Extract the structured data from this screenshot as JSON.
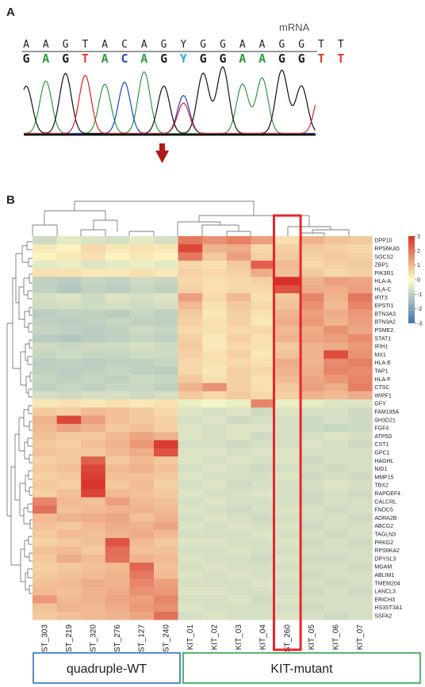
{
  "panel_a": {
    "label": "A",
    "title": "mRNA",
    "top_sequence": [
      "A",
      "A",
      "G",
      "T",
      "A",
      "C",
      "A",
      "G",
      "Y",
      "G",
      "G",
      "A",
      "A",
      "G",
      "G",
      "T",
      "T"
    ],
    "base_calls": [
      "G",
      "A",
      "G",
      "T",
      "A",
      "C",
      "A",
      "G",
      "Y",
      "G",
      "G",
      "A",
      "A",
      "G",
      "G",
      "T",
      "T"
    ],
    "base_colors": {
      "A": "#2e9a3e",
      "C": "#2450c8",
      "G": "#222222",
      "T": "#e23b2e",
      "Y": "#29a8e0"
    },
    "trace_colors": {
      "A": "#2e9a3e",
      "C": "#2040d0",
      "G": "#111111",
      "T": "#e02020"
    },
    "arrow_color": "#b01a1a"
  },
  "panel_b": {
    "label": "B",
    "highlight_color": "#e8262c",
    "groups": [
      {
        "label": "quadruple-WT",
        "color": "#2d6fb7"
      },
      {
        "label": "KIT-mutant",
        "color": "#2aa64a"
      }
    ]
  },
  "chart_data": {
    "type": "heatmap",
    "columns": [
      "GIST_303",
      "GIST_219",
      "GIST_320",
      "GIST_276",
      "GIST_127",
      "GIST_240",
      "KIT_01",
      "KIT_02",
      "KIT_03",
      "KIT_04",
      "GIST_260",
      "KIT_05",
      "KIT_06",
      "KIT_07"
    ],
    "rows": [
      "DPP10",
      "RPS6KA5",
      "SOCS2",
      "ZBP1",
      "PIK3R1",
      "HLA-A",
      "HLA-C",
      "IFIT3",
      "EPSTI1",
      "BTN3A3",
      "BTN3A2",
      "PSME2",
      "STAT1",
      "IFIH1",
      "MX1",
      "HLA-E",
      "TAP1",
      "HLA-F",
      "CTSC",
      "WIPF1",
      "GFY",
      "FAM195A",
      "SH3D21",
      "FGF4",
      "ATP5D",
      "CST1",
      "GPC1",
      "HAGHL",
      "NID1",
      "MMP15",
      "TBX2",
      "RAPGEF4",
      "CALCRL",
      "FNDC5",
      "ADRA2B",
      "ABCG2",
      "TAGLN3",
      "PRKG2",
      "RPS6KA2",
      "DPYSL3",
      "MGAM",
      "ABLIM1",
      "TMEM204",
      "LANCL3",
      "ERICH3",
      "HS3ST3A1",
      "SSFA2"
    ],
    "values": [
      [
        -0.6,
        -0.3,
        -0.4,
        -0.5,
        -0.3,
        -0.5,
        1.8,
        1.4,
        1.7,
        1.2,
        0.3,
        0.9,
        0.7,
        0.6
      ],
      [
        0.2,
        0.1,
        0.4,
        0.2,
        0.3,
        0.2,
        2.6,
        0.9,
        1.0,
        0.4,
        0.5,
        0.6,
        0.5,
        0.4
      ],
      [
        0.1,
        0.2,
        0.3,
        0.1,
        0.2,
        0.1,
        1.8,
        0.6,
        1.2,
        0.5,
        0.6,
        0.5,
        0.6,
        0.5
      ],
      [
        -0.3,
        -0.2,
        -0.4,
        -0.3,
        -0.2,
        -0.3,
        0.4,
        0.3,
        0.6,
        2.2,
        0.8,
        0.4,
        0.5,
        0.6
      ],
      [
        0.3,
        0.3,
        0.2,
        0.2,
        0.3,
        0.2,
        0.5,
        0.4,
        0.5,
        1.0,
        0.7,
        0.6,
        0.4,
        0.5
      ],
      [
        -0.8,
        -0.9,
        -0.7,
        -0.8,
        -0.6,
        -0.7,
        0.4,
        0.3,
        0.4,
        0.5,
        3.0,
        0.9,
        1.2,
        1.1
      ],
      [
        -0.8,
        -1.0,
        -0.8,
        -0.9,
        -0.7,
        -0.8,
        0.5,
        0.3,
        0.4,
        0.4,
        2.4,
        1.0,
        1.0,
        1.2
      ],
      [
        -0.5,
        -0.4,
        -0.6,
        -0.4,
        -0.5,
        -0.4,
        1.2,
        0.4,
        0.8,
        0.3,
        0.6,
        1.6,
        0.9,
        1.8
      ],
      [
        -0.6,
        -0.5,
        -0.6,
        -0.5,
        -0.6,
        -0.5,
        0.8,
        0.3,
        0.6,
        0.4,
        0.7,
        1.4,
        0.8,
        1.6
      ],
      [
        -0.9,
        -0.8,
        -0.8,
        -0.9,
        -0.7,
        -0.8,
        0.6,
        0.2,
        0.5,
        0.3,
        0.9,
        1.2,
        1.0,
        1.3
      ],
      [
        -0.8,
        -0.9,
        -0.8,
        -0.7,
        -0.8,
        -0.8,
        0.5,
        0.3,
        0.5,
        0.2,
        1.0,
        1.3,
        0.9,
        1.2
      ],
      [
        -0.7,
        -0.8,
        -0.9,
        -0.8,
        -0.6,
        -0.7,
        0.4,
        0.3,
        0.4,
        0.4,
        0.8,
        1.0,
        1.4,
        1.1
      ],
      [
        -0.9,
        -1.0,
        -0.9,
        -0.8,
        -0.7,
        -0.8,
        0.5,
        0.2,
        0.5,
        0.3,
        0.9,
        1.1,
        1.2,
        1.5
      ],
      [
        -0.6,
        -0.7,
        -0.6,
        -0.6,
        -0.5,
        -0.6,
        0.6,
        0.2,
        0.4,
        0.3,
        0.6,
        0.9,
        1.0,
        1.3
      ],
      [
        -0.7,
        -0.6,
        -0.7,
        -0.7,
        -0.6,
        -0.6,
        0.5,
        0.3,
        0.5,
        0.2,
        0.7,
        0.9,
        2.5,
        1.4
      ],
      [
        -0.9,
        -0.8,
        -0.9,
        -0.8,
        -0.8,
        -0.7,
        0.4,
        0.3,
        0.4,
        0.3,
        1.0,
        0.9,
        1.5,
        1.7
      ],
      [
        -0.8,
        -0.9,
        -0.8,
        -0.7,
        -0.8,
        -0.9,
        0.4,
        0.2,
        0.5,
        0.4,
        0.9,
        1.0,
        1.6,
        1.5
      ],
      [
        -0.7,
        -0.8,
        -0.7,
        -0.8,
        -0.6,
        -0.7,
        0.6,
        0.3,
        0.5,
        0.3,
        0.8,
        1.1,
        1.3,
        1.6
      ],
      [
        -0.8,
        -0.7,
        -0.8,
        -0.7,
        -0.7,
        -0.8,
        0.9,
        1.4,
        0.5,
        0.3,
        0.6,
        1.2,
        1.0,
        1.7
      ],
      [
        -0.5,
        -0.6,
        -0.5,
        -0.5,
        -0.6,
        -0.5,
        0.6,
        0.4,
        0.6,
        0.4,
        0.5,
        0.9,
        0.8,
        1.0
      ],
      [
        0.2,
        0.3,
        0.2,
        0.3,
        0.2,
        0.3,
        -0.2,
        -0.1,
        -0.2,
        1.6,
        -0.2,
        -0.3,
        -0.4,
        -0.4
      ],
      [
        0.6,
        0.5,
        0.8,
        0.7,
        0.6,
        0.4,
        -0.4,
        -0.5,
        -0.4,
        -0.6,
        -0.4,
        -0.5,
        -0.5,
        -0.6
      ],
      [
        0.9,
        2.6,
        1.2,
        0.7,
        0.6,
        0.5,
        -0.5,
        -0.4,
        -0.6,
        -0.5,
        -0.5,
        -0.6,
        -0.5,
        -0.6
      ],
      [
        0.8,
        1.1,
        0.9,
        0.6,
        0.7,
        0.5,
        -0.4,
        -0.5,
        -0.4,
        -0.4,
        -0.5,
        -0.6,
        -0.7,
        -0.6
      ],
      [
        0.7,
        0.6,
        0.6,
        0.8,
        1.1,
        0.9,
        -0.4,
        -0.5,
        -0.4,
        -0.6,
        -0.5,
        -0.5,
        -0.4,
        -0.5
      ],
      [
        0.6,
        0.5,
        0.7,
        0.9,
        1.3,
        2.8,
        -0.5,
        -0.5,
        -0.6,
        -0.5,
        -0.5,
        -0.4,
        -0.5,
        -0.6
      ],
      [
        0.7,
        0.6,
        0.6,
        0.8,
        1.0,
        2.4,
        -0.4,
        -0.4,
        -0.5,
        -0.4,
        -0.4,
        -0.5,
        -0.5,
        -0.5
      ],
      [
        0.5,
        0.6,
        2.2,
        0.6,
        0.8,
        0.6,
        -0.4,
        -0.5,
        -0.4,
        -0.5,
        -0.4,
        -0.6,
        -0.5,
        -0.5
      ],
      [
        0.6,
        0.7,
        2.6,
        0.8,
        0.9,
        0.7,
        -0.5,
        -0.4,
        -0.5,
        -0.6,
        -0.5,
        -0.5,
        -0.6,
        -0.5
      ],
      [
        0.5,
        0.6,
        2.8,
        0.7,
        0.7,
        0.6,
        -0.4,
        -0.5,
        -0.5,
        -0.5,
        -0.4,
        -0.6,
        -0.5,
        -0.6
      ],
      [
        0.6,
        0.5,
        2.9,
        0.6,
        0.8,
        0.5,
        -0.5,
        -0.4,
        -0.6,
        -0.5,
        -0.5,
        -0.5,
        -0.4,
        -0.5
      ],
      [
        0.5,
        0.7,
        2.7,
        0.8,
        0.7,
        0.6,
        -0.4,
        -0.5,
        -0.5,
        -0.4,
        -0.5,
        -0.6,
        -0.5,
        -0.6
      ],
      [
        1.6,
        0.8,
        0.7,
        1.2,
        0.8,
        0.7,
        -0.5,
        -0.4,
        -0.5,
        -0.5,
        -0.5,
        -0.6,
        -0.5,
        -0.5
      ],
      [
        1.9,
        0.7,
        0.8,
        0.9,
        0.9,
        0.8,
        -0.4,
        -0.5,
        -0.6,
        -0.5,
        -0.4,
        -0.5,
        -0.6,
        -0.5
      ],
      [
        0.8,
        0.9,
        1.0,
        1.1,
        0.7,
        0.9,
        -0.5,
        -0.4,
        -0.5,
        -0.6,
        -0.5,
        -0.5,
        -0.5,
        -0.6
      ],
      [
        0.7,
        0.6,
        0.8,
        1.0,
        0.9,
        1.1,
        -0.4,
        -0.5,
        -0.4,
        -0.5,
        -0.4,
        -0.6,
        -0.5,
        -0.5
      ],
      [
        0.6,
        0.8,
        0.7,
        0.9,
        1.0,
        0.8,
        -0.5,
        -0.5,
        -0.5,
        -0.4,
        -0.5,
        -0.5,
        -0.6,
        -0.5
      ],
      [
        0.5,
        0.6,
        0.7,
        2.4,
        0.8,
        0.6,
        -0.4,
        -0.4,
        -0.5,
        -0.5,
        -0.4,
        -0.6,
        -0.5,
        -0.6
      ],
      [
        0.7,
        0.8,
        0.6,
        2.0,
        0.7,
        0.7,
        -0.5,
        -0.5,
        -0.4,
        -0.5,
        -0.5,
        -0.5,
        -0.5,
        -0.5
      ],
      [
        0.6,
        1.0,
        0.8,
        1.9,
        0.9,
        0.8,
        -0.4,
        -0.5,
        -0.5,
        -0.6,
        -0.4,
        -0.6,
        -0.6,
        -0.5
      ],
      [
        0.5,
        0.6,
        0.7,
        0.8,
        2.1,
        0.7,
        -0.5,
        -0.4,
        -0.5,
        -0.5,
        -0.5,
        -0.5,
        -0.5,
        -0.6
      ],
      [
        0.6,
        0.7,
        0.8,
        0.9,
        1.8,
        0.8,
        -0.4,
        -0.5,
        -0.4,
        -0.5,
        -0.4,
        -0.6,
        -0.5,
        -0.5
      ],
      [
        0.7,
        0.8,
        1.0,
        0.9,
        1.6,
        1.2,
        -0.5,
        -0.5,
        -0.5,
        -0.4,
        -0.5,
        -0.5,
        -0.6,
        -0.5
      ],
      [
        0.8,
        0.7,
        0.9,
        1.0,
        1.4,
        1.3,
        -0.4,
        -0.4,
        -0.5,
        -0.5,
        -0.5,
        -0.6,
        -0.5,
        -0.6
      ],
      [
        1.3,
        0.8,
        0.9,
        1.1,
        1.2,
        1.6,
        -0.5,
        -0.5,
        -0.4,
        -0.6,
        -0.4,
        -0.5,
        -0.5,
        -0.5
      ],
      [
        0.7,
        0.9,
        0.8,
        1.0,
        1.3,
        1.4,
        -0.4,
        -0.5,
        -0.5,
        -0.5,
        -0.5,
        -0.6,
        -0.5,
        -0.5
      ],
      [
        0.6,
        0.7,
        0.8,
        0.9,
        1.1,
        1.9,
        -0.5,
        -0.4,
        -0.5,
        -0.5,
        -0.4,
        -0.5,
        -0.6,
        -0.5
      ]
    ],
    "highlight_column": "GIST_260",
    "colorbar": {
      "ticks": [
        3,
        2,
        1,
        0,
        -1,
        -2,
        -3
      ],
      "range": [
        -3,
        3
      ],
      "colors": [
        "#4575b4",
        "#fdfdc7",
        "#d73027"
      ]
    }
  }
}
